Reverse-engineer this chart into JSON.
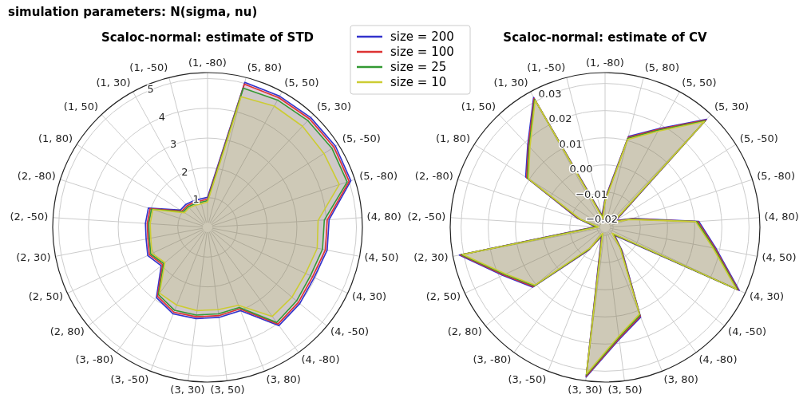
{
  "chart_data": [
    {
      "type": "radar",
      "title": "Scaloc-normal: estimate of STD",
      "categories": [
        "(1, -80)",
        "(5, 80)",
        "(5, 50)",
        "(5, 30)",
        "(5, -50)",
        "(5, -80)",
        "(4, 80)",
        "(4, 50)",
        "(4, 30)",
        "(4, -50)",
        "(4, -80)",
        "(3, 80)",
        "(3, 50)",
        "(3, 30)",
        "(3, -50)",
        "(3, -80)",
        "(2, 80)",
        "(2, 50)",
        "(2, 30)",
        "(2, -50)",
        "(2, -80)",
        "(1, 80)",
        "(1, 50)",
        "(1, 30)",
        "(1, -50)"
      ],
      "ylim": [
        0,
        5.2
      ],
      "yticks": [
        1,
        2,
        3,
        4,
        5
      ],
      "grid": true,
      "legend": "top right",
      "annotations": [
        "simulation parameters: N(sigma, nu)"
      ],
      "series": [
        {
          "name": "size = 200",
          "color": "#3333cc",
          "values": [
            1.01,
            5.03,
            5.03,
            5.06,
            5.09,
            5.06,
            4.09,
            4.09,
            3.96,
            4.02,
            4.08,
            3.01,
            3.05,
            3.09,
            3.13,
            2.92,
            2.02,
            2.22,
            2.1,
            2.09,
            2.09,
            1.08,
            1.06,
            1.01,
            0.98
          ]
        },
        {
          "name": "size = 100",
          "color": "#dd3333",
          "values": [
            0.95,
            4.97,
            4.97,
            5.0,
            5.03,
            5.0,
            4.03,
            4.03,
            3.9,
            3.96,
            4.02,
            2.95,
            2.99,
            3.03,
            3.07,
            2.86,
            1.96,
            2.16,
            2.04,
            2.03,
            2.03,
            1.02,
            1.0,
            0.95,
            0.92
          ]
        },
        {
          "name": "size = 25",
          "color": "#339933",
          "values": [
            0.9,
            4.83,
            4.88,
            4.92,
            4.95,
            4.93,
            3.93,
            3.93,
            3.82,
            3.88,
            3.95,
            2.9,
            2.93,
            2.97,
            3.0,
            2.8,
            1.91,
            2.11,
            1.99,
            1.98,
            1.98,
            0.97,
            0.95,
            0.9,
            0.87
          ]
        },
        {
          "name": "size = 10",
          "color": "#cccc33",
          "values": [
            0.85,
            4.53,
            4.65,
            4.66,
            4.63,
            4.65,
            3.72,
            3.75,
            3.64,
            3.68,
            3.7,
            2.82,
            2.79,
            2.82,
            2.81,
            2.74,
            1.86,
            2.06,
            1.94,
            1.93,
            1.93,
            0.92,
            0.9,
            0.85,
            0.82
          ]
        }
      ]
    },
    {
      "type": "radar",
      "title": "Scaloc-normal: estimate of CV",
      "categories": [
        "(1, -80)",
        "(5, 80)",
        "(5, 50)",
        "(5, 30)",
        "(5, -50)",
        "(5, -80)",
        "(4, 80)",
        "(4, 50)",
        "(4, 30)",
        "(4, -50)",
        "(4, -80)",
        "(3, 80)",
        "(3, 50)",
        "(3, 30)",
        "(3, -50)",
        "(3, -80)",
        "(2, 80)",
        "(2, 50)",
        "(2, 30)",
        "(2, -50)",
        "(2, -80)",
        "(1, 80)",
        "(1, 50)",
        "(1, 30)",
        "(1, -50)"
      ],
      "ylim": [
        -0.023,
        0.034
      ],
      "yticks": [
        {
          "value": -0.02,
          "label": "−0.02"
        },
        {
          "value": -0.01,
          "label": "−0.01"
        },
        {
          "value": 0,
          "label": "0.00"
        },
        0.01,
        0.02,
        0.03
      ],
      "grid": true,
      "series": [
        {
          "color": "#3333cc",
          "values": [
            -0.0124,
            0.0116,
            0.0186,
            0.0316,
            -0.0184,
            -0.0124,
            0.0116,
            0.0186,
            0.0316,
            -0.0184,
            -0.0124,
            0.0126,
            0.0186,
            0.0326,
            -0.0194,
            -0.0124,
            0.0116,
            0.0186,
            0.0316,
            -0.0194,
            -0.0124,
            0.0116,
            0.0186,
            0.0316,
            -0.0184
          ]
        },
        {
          "color": "#dd3333",
          "values": [
            -0.0128,
            0.0112,
            0.0182,
            0.0312,
            -0.0188,
            -0.0128,
            0.0112,
            0.0182,
            0.0312,
            -0.0188,
            -0.0128,
            0.0122,
            0.0182,
            0.0322,
            -0.0198,
            -0.0128,
            0.0112,
            0.0182,
            0.0312,
            -0.0198,
            -0.0128,
            0.0112,
            0.0182,
            0.0312,
            -0.0188
          ]
        },
        {
          "color": "#339933",
          "values": [
            -0.0132,
            0.0108,
            0.0178,
            0.0308,
            -0.0192,
            -0.0132,
            0.0108,
            0.0178,
            0.0308,
            -0.0192,
            -0.0132,
            0.0118,
            0.0178,
            0.0318,
            -0.0202,
            -0.0132,
            0.0108,
            0.0178,
            0.0308,
            -0.0202,
            -0.0132,
            0.0108,
            0.0178,
            0.0308,
            -0.0192
          ]
        },
        {
          "color": "#cccc33",
          "values": [
            -0.0136,
            0.0104,
            0.0174,
            0.0304,
            -0.0196,
            -0.0136,
            0.0104,
            0.0174,
            0.0304,
            -0.0196,
            -0.0136,
            0.0114,
            0.0174,
            0.0314,
            -0.0206,
            -0.0136,
            0.0104,
            0.0174,
            0.0304,
            -0.0206,
            -0.0136,
            0.0104,
            0.0174,
            0.0304,
            -0.0196
          ]
        }
      ]
    }
  ]
}
